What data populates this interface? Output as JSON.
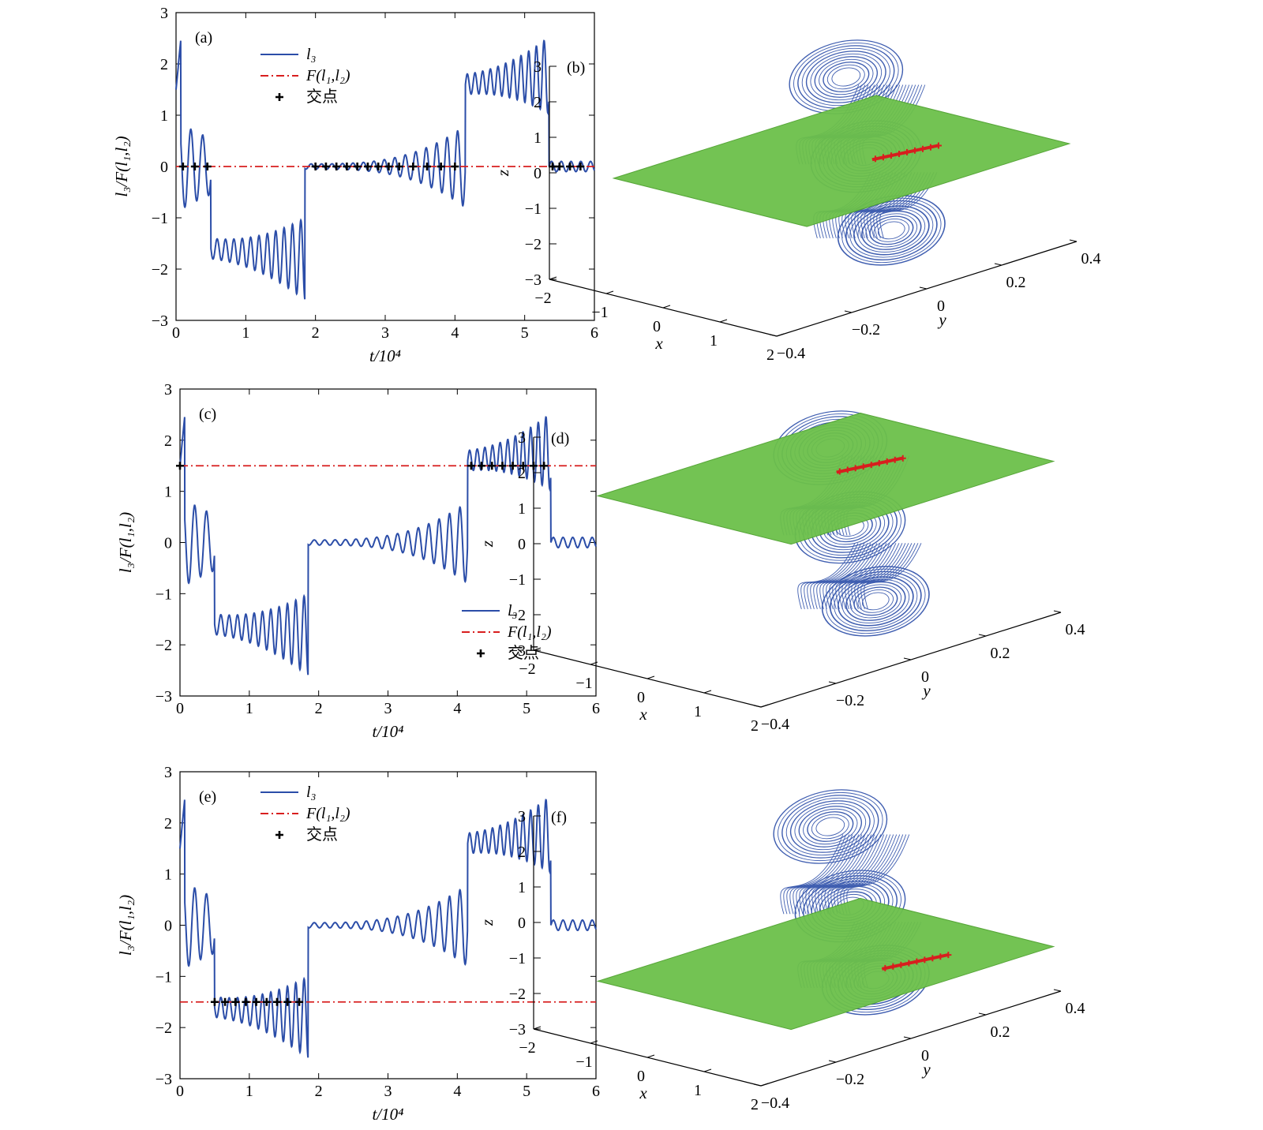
{
  "colors": {
    "series": "#2b4da8",
    "fline": "#d81e1e",
    "marker": "#000000",
    "plane": "#6cc04a",
    "plane_edge": "#4fa22f",
    "trace": "#d81e1e"
  },
  "chart_data": [
    {
      "panel": "(a)",
      "type": "line",
      "xlabel": "t/10⁴",
      "ylabel": "l₃/F(l₁,l₂)",
      "xlim": [
        0,
        6
      ],
      "ylim": [
        -3,
        3
      ],
      "xticks": [
        0,
        1,
        2,
        3,
        4,
        5,
        6
      ],
      "yticks": [
        -3,
        -2,
        -1,
        0,
        1,
        2,
        3
      ],
      "legend": {
        "position": "top-center",
        "entries": [
          "l₃",
          "F(l₁,l₂)",
          "交点"
        ]
      },
      "series": [
        {
          "name": "l₃",
          "style": "solid"
        },
        {
          "name": "F(l₁,l₂)",
          "style": "dash-dot",
          "value": 0
        },
        {
          "name": "交点",
          "style": "marker",
          "x": [
            0.1,
            0.27,
            0.45,
            2.0,
            2.15,
            2.3,
            2.45,
            2.6,
            2.75,
            2.9,
            3.05,
            3.2,
            3.4,
            3.6,
            3.8,
            4.0,
            5.4,
            5.5,
            5.65,
            5.8
          ]
        }
      ]
    },
    {
      "panel": "(b)",
      "type": "3d-trajectory",
      "xlabel": "x",
      "ylabel": "y",
      "zlabel": "z",
      "xticks": [
        -2,
        -1,
        0,
        1,
        2
      ],
      "yticks": [
        -0.4,
        -0.2,
        0,
        0.2,
        0.4
      ],
      "zticks": [
        -3,
        -2,
        -1,
        0,
        1,
        2,
        3
      ],
      "plane_z": 0
    },
    {
      "panel": "(c)",
      "type": "line",
      "xlabel": "t/10⁴",
      "ylabel": "l₃/F(l₁,l₂)",
      "xlim": [
        0,
        6
      ],
      "ylim": [
        -3,
        3
      ],
      "xticks": [
        0,
        1,
        2,
        3,
        4,
        5,
        6
      ],
      "yticks": [
        -3,
        -2,
        -1,
        0,
        1,
        2,
        3
      ],
      "legend": {
        "position": "lower-right",
        "entries": [
          "l₃",
          "F(l₁,l₂)",
          "交点"
        ]
      },
      "series": [
        {
          "name": "l₃",
          "style": "solid"
        },
        {
          "name": "F(l₁,l₂)",
          "style": "dash-dot",
          "value": 1.5
        },
        {
          "name": "交点",
          "style": "marker",
          "x": [
            0.0,
            4.2,
            4.35,
            4.5,
            4.65,
            4.8,
            4.95,
            5.1,
            5.25
          ]
        }
      ]
    },
    {
      "panel": "(d)",
      "type": "3d-trajectory",
      "xlabel": "x",
      "ylabel": "y",
      "zlabel": "z",
      "xticks": [
        -2,
        -1,
        0,
        1,
        2
      ],
      "yticks": [
        -0.4,
        -0.2,
        0,
        0.2,
        0.4
      ],
      "zticks": [
        -3,
        -2,
        -1,
        0,
        1,
        2,
        3
      ],
      "plane_z": 1.5
    },
    {
      "panel": "(e)",
      "type": "line",
      "xlabel": "t/10⁴",
      "ylabel": "l₃/F(l₁,l₂)",
      "xlim": [
        0,
        6
      ],
      "ylim": [
        -3,
        3
      ],
      "xticks": [
        0,
        1,
        2,
        3,
        4,
        5,
        6
      ],
      "yticks": [
        -3,
        -2,
        -1,
        0,
        1,
        2,
        3
      ],
      "legend": {
        "position": "top-center",
        "entries": [
          "l₃",
          "F(l₁,l₂)",
          "交点"
        ]
      },
      "series": [
        {
          "name": "l₃",
          "style": "solid"
        },
        {
          "name": "F(l₁,l₂)",
          "style": "dash-dot",
          "value": -1.5
        },
        {
          "name": "交点",
          "style": "marker",
          "x": [
            0.5,
            0.65,
            0.8,
            0.95,
            1.1,
            1.25,
            1.4,
            1.55,
            1.72
          ]
        }
      ]
    },
    {
      "panel": "(f)",
      "type": "3d-trajectory",
      "xlabel": "x",
      "ylabel": "y",
      "zlabel": "z",
      "xticks": [
        -2,
        -1,
        0,
        1,
        2
      ],
      "yticks": [
        -0.4,
        -0.2,
        0,
        0.2,
        0.4
      ],
      "zticks": [
        -3,
        -2,
        -1,
        0,
        1,
        2,
        3
      ],
      "plane_z": -1.5
    }
  ]
}
